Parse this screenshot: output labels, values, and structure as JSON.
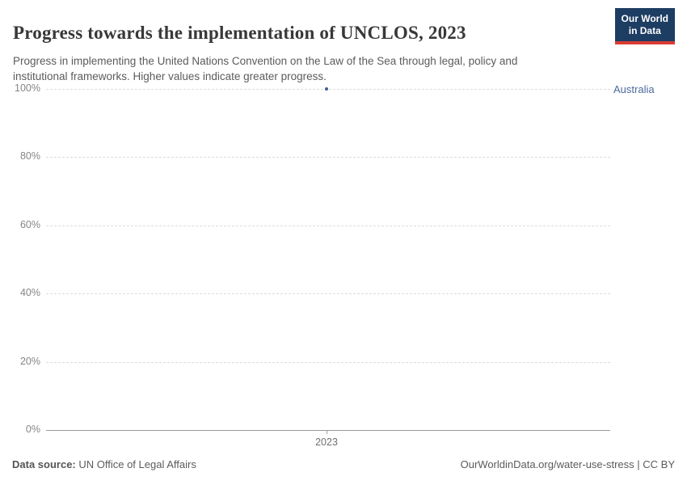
{
  "header": {
    "title": "Progress towards the implementation of UNCLOS, 2023",
    "subtitle": "Progress in implementing the United Nations Convention on the Law of the Sea through legal, policy and institutional frameworks. Higher values indicate greater progress."
  },
  "logo": {
    "line1": "Our World",
    "line2": "in Data"
  },
  "chart_data": {
    "type": "scatter",
    "title": "Progress towards the implementation of UNCLOS, 2023",
    "x": [
      2023
    ],
    "xtick_labels": [
      "2023"
    ],
    "series": [
      {
        "name": "Australia",
        "values": [
          100
        ]
      }
    ],
    "ylim": [
      0,
      100
    ],
    "yticks": [
      0,
      20,
      40,
      60,
      80,
      100
    ],
    "ytick_suffix": "%",
    "xlabel": "",
    "ylabel": "",
    "grid": "dashed-horizontal",
    "legend_position": "right-of-point",
    "point_color": "#3d5f93",
    "entity_label_color": "#4c6a9c"
  },
  "footer": {
    "datasource_label": "Data source:",
    "datasource_value": " UN Office of Legal Affairs",
    "attribution": "OurWorldinData.org/water-use-stress | CC BY"
  },
  "colors": {
    "logo_bg": "#1d3d63",
    "logo_accent": "#d93d33",
    "gridline": "#dcdcdc",
    "axis": "#9a9a9a",
    "title_text": "#383838",
    "subtitle_text": "#5b5b5b"
  }
}
